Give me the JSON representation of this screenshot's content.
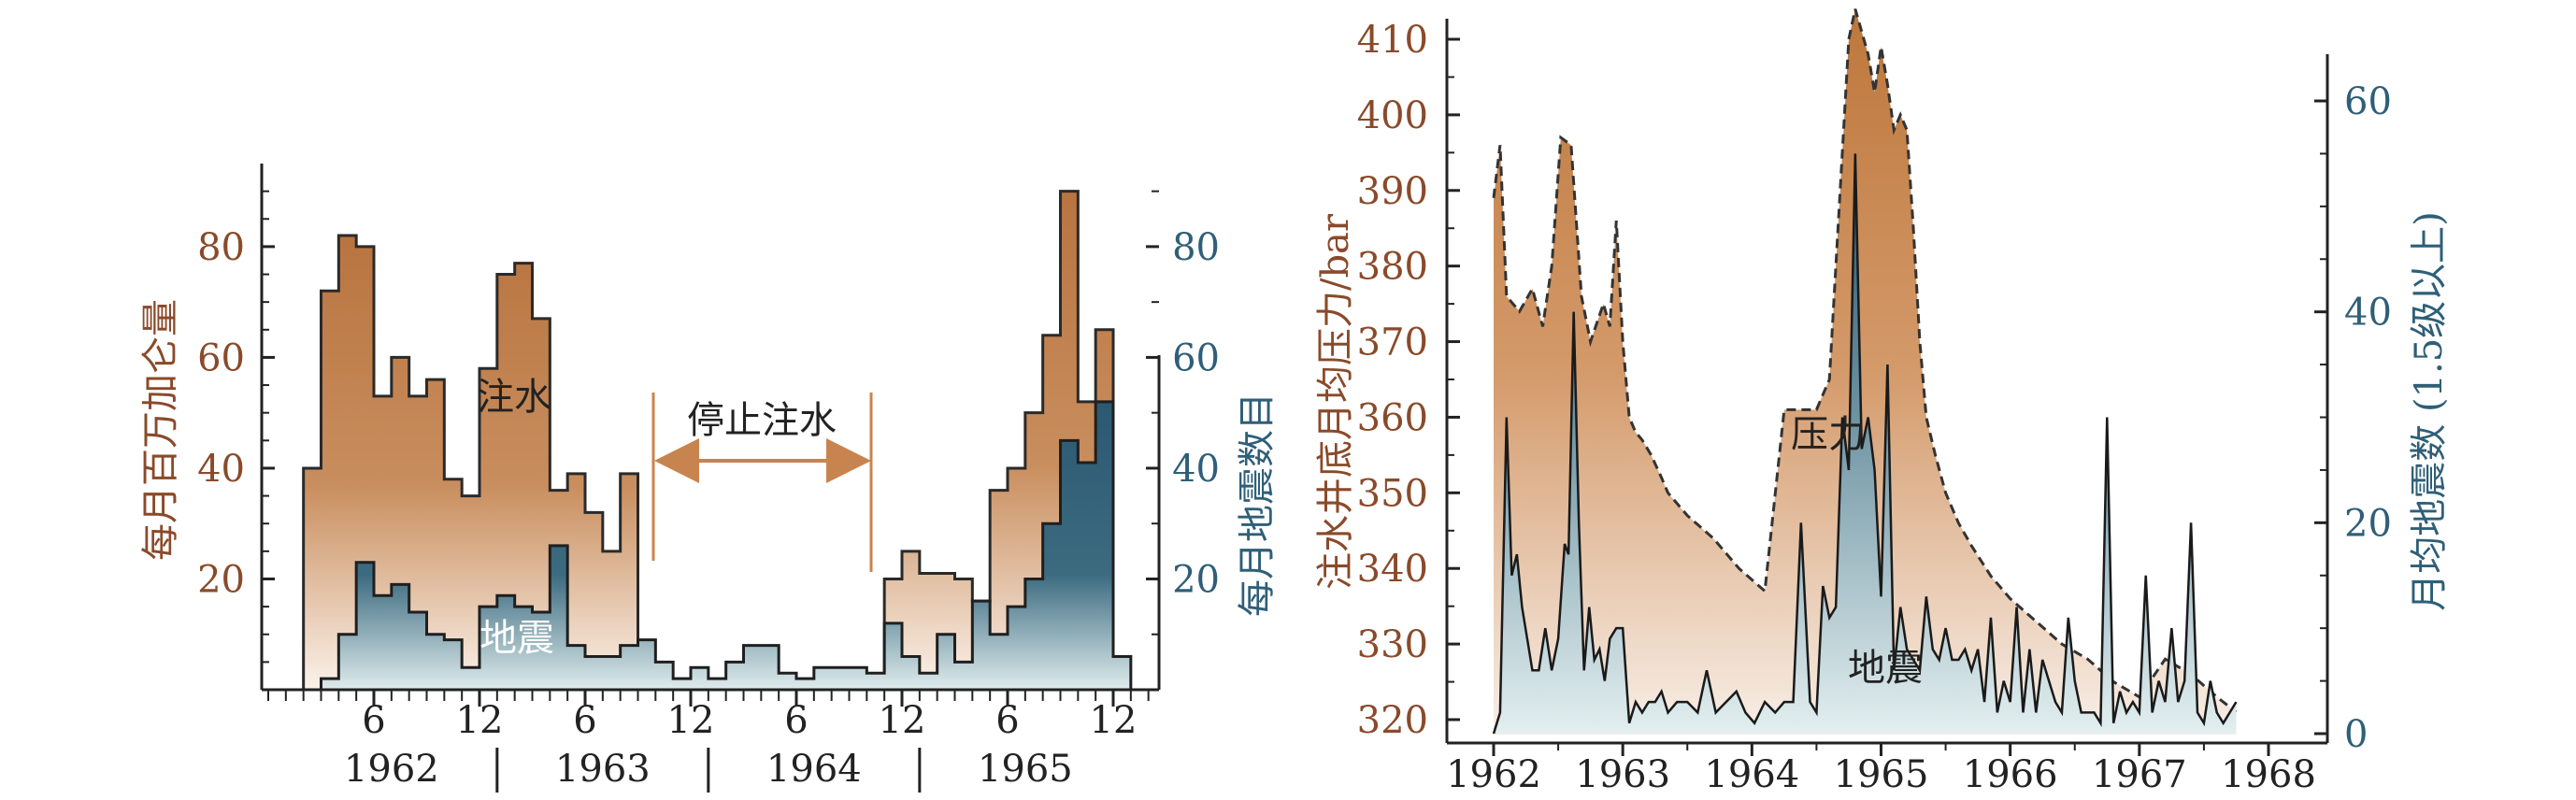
{
  "colors": {
    "injection_top": "#b87440",
    "injection_bottom": "#ffffff",
    "quake_top": "#2c5872",
    "quake_bottom": "#eaf2f3",
    "pressure_top": "#c07a40",
    "pressure_bottom": "#f7efe7",
    "brown_text": "#8a4a2a",
    "blue_text": "#2f5f78",
    "arrow": "#c8844e"
  },
  "chart_data": [
    {
      "type": "area",
      "y_left_label": "每月百万加仑量",
      "y_left_ticks": [
        "20",
        "40",
        "60",
        "80"
      ],
      "y_left_lim": [
        0,
        95
      ],
      "y_right_label": "每月地震数目",
      "y_right_ticks": [
        "20",
        "40",
        "60",
        "80"
      ],
      "y_right_lim": [
        0,
        95
      ],
      "x_ticks": [
        "6",
        "12",
        "6",
        "12",
        "6",
        "12",
        "6",
        "12"
      ],
      "x_tick_months": [
        6,
        12,
        18,
        24,
        30,
        36,
        42,
        48
      ],
      "years": [
        "1962",
        "1963",
        "1964",
        "1965"
      ],
      "annotations": {
        "injection": "注水",
        "quakes": "地震",
        "stop": "停止注水"
      },
      "stop_period_months": [
        21,
        33.5
      ],
      "series": [
        {
          "name": "注水",
          "axis": "left",
          "step_start_month": 2,
          "values": [
            40,
            72,
            82,
            80,
            53,
            60,
            53,
            56,
            38,
            35,
            58,
            75,
            77,
            67,
            36,
            39,
            32,
            25,
            39,
            0,
            0,
            0,
            0,
            0,
            0,
            0,
            0,
            0,
            0,
            0,
            0,
            0,
            0,
            20,
            25,
            21,
            21,
            20,
            16,
            36,
            40,
            50,
            64,
            90,
            52,
            65,
            0
          ],
          "gap_months": [
            21,
            33
          ]
        },
        {
          "name": "地震",
          "axis": "right",
          "step_start_month": 3,
          "values": [
            2,
            10,
            23,
            17,
            19,
            14,
            10,
            9,
            4,
            15,
            17,
            15,
            14,
            26,
            8,
            6,
            6,
            8,
            9,
            5,
            2,
            4,
            2,
            5,
            8,
            8,
            3,
            2,
            4,
            4,
            4,
            3,
            12,
            6,
            3,
            10,
            5,
            16,
            10,
            15,
            20,
            30,
            45,
            41,
            52,
            6
          ]
        }
      ]
    },
    {
      "type": "area",
      "y_left_label": "注水井底月均压力/bar",
      "y_left_ticks": [
        "320",
        "330",
        "340",
        "350",
        "360",
        "370",
        "380",
        "390",
        "400",
        "410"
      ],
      "y_left_lim": [
        318,
        414
      ],
      "y_right_label": "月均地震数 (1.5级以上)",
      "y_right_ticks": [
        "0",
        "20",
        "40",
        "60"
      ],
      "y_right_lim": [
        0,
        64
      ],
      "x_ticks": [
        "1962",
        "1963",
        "1964",
        "1965",
        "1966",
        "1967",
        "1968"
      ],
      "x_lim": [
        1962.0,
        1968.4
      ],
      "annotations": {
        "pressure": "压力",
        "quakes": "地震"
      },
      "series": [
        {
          "name": "压力",
          "axis": "left",
          "x": [
            1962.0,
            1962.05,
            1962.1,
            1962.15,
            1962.2,
            1962.3,
            1962.38,
            1962.45,
            1962.52,
            1962.6,
            1962.68,
            1962.75,
            1962.85,
            1962.9,
            1962.95,
            1963.0,
            1963.05,
            1963.1,
            1963.15,
            1963.22,
            1963.3,
            1963.35,
            1963.5,
            1963.7,
            1963.9,
            1964.1,
            1964.25,
            1964.35,
            1964.42,
            1964.5,
            1964.6,
            1964.75,
            1964.8,
            1964.9,
            1964.95,
            1965.0,
            1965.05,
            1965.1,
            1965.15,
            1965.2,
            1965.25,
            1965.3,
            1965.35,
            1965.42,
            1965.5,
            1965.6,
            1965.7,
            1965.85,
            1966.0,
            1966.2,
            1966.4,
            1966.6,
            1966.8,
            1967.0,
            1967.2,
            1967.4,
            1967.6,
            1967.75
          ],
          "values": [
            389,
            396,
            376,
            375,
            374,
            377,
            372,
            380,
            397,
            396,
            376,
            370,
            375,
            372,
            386,
            370,
            360,
            358,
            357,
            355,
            352,
            350,
            347,
            344,
            340,
            337,
            361,
            361,
            361,
            361,
            365,
            410,
            414,
            408,
            403,
            409,
            404,
            398,
            400,
            398,
            385,
            370,
            360,
            355,
            350,
            346,
            343,
            339,
            336,
            333,
            330,
            328,
            325,
            323,
            328,
            326,
            323,
            321
          ]
        },
        {
          "name": "地震",
          "axis": "right",
          "x": [
            1962.0,
            1962.05,
            1962.1,
            1962.14,
            1962.18,
            1962.22,
            1962.26,
            1962.3,
            1962.35,
            1962.4,
            1962.45,
            1962.5,
            1962.55,
            1962.58,
            1962.62,
            1962.66,
            1962.7,
            1962.74,
            1962.78,
            1962.82,
            1962.86,
            1962.9,
            1962.95,
            1963.0,
            1963.05,
            1963.1,
            1963.15,
            1963.2,
            1963.25,
            1963.3,
            1963.35,
            1963.42,
            1963.5,
            1963.58,
            1963.65,
            1963.72,
            1963.8,
            1963.88,
            1963.95,
            1964.02,
            1964.1,
            1964.18,
            1964.25,
            1964.32,
            1964.38,
            1964.45,
            1964.5,
            1964.55,
            1964.6,
            1964.65,
            1964.7,
            1964.75,
            1964.8,
            1964.85,
            1964.9,
            1964.95,
            1965.0,
            1965.05,
            1965.1,
            1965.15,
            1965.2,
            1965.25,
            1965.3,
            1965.35,
            1965.4,
            1965.45,
            1965.5,
            1965.55,
            1965.6,
            1965.65,
            1965.7,
            1965.75,
            1965.8,
            1965.85,
            1965.9,
            1965.95,
            1966.0,
            1966.05,
            1966.1,
            1966.15,
            1966.2,
            1966.25,
            1966.3,
            1966.35,
            1966.4,
            1966.45,
            1966.5,
            1966.55,
            1966.6,
            1966.65,
            1966.7,
            1966.75,
            1966.8,
            1966.85,
            1966.9,
            1966.95,
            1967.0,
            1967.05,
            1967.1,
            1967.15,
            1967.2,
            1967.25,
            1967.3,
            1967.35,
            1967.4,
            1967.45,
            1967.5,
            1967.55,
            1967.6,
            1967.65,
            1967.7,
            1967.75
          ],
          "values": [
            0,
            2,
            30,
            15,
            17,
            12,
            9,
            6,
            6,
            10,
            6,
            9,
            18,
            17,
            40,
            20,
            6,
            12,
            7,
            8,
            5,
            9,
            10,
            10,
            1,
            3,
            2,
            3,
            3,
            4,
            2,
            3,
            3,
            2,
            6,
            2,
            3,
            4,
            2,
            1,
            3,
            2,
            3,
            3,
            20,
            3,
            2,
            14,
            11,
            12,
            30,
            25,
            55,
            27,
            30,
            25,
            13,
            35,
            6,
            12,
            8,
            7,
            6,
            13,
            8,
            7,
            10,
            7,
            7,
            8,
            6,
            8,
            3,
            11,
            2,
            5,
            3,
            12,
            2,
            8,
            2,
            7,
            5,
            3,
            2,
            11,
            5,
            2,
            2,
            2,
            1,
            30,
            1,
            4,
            2,
            3,
            2,
            15,
            2,
            5,
            3,
            10,
            3,
            5,
            20,
            2,
            1,
            5,
            2,
            1,
            2,
            3
          ]
        }
      ]
    }
  ]
}
